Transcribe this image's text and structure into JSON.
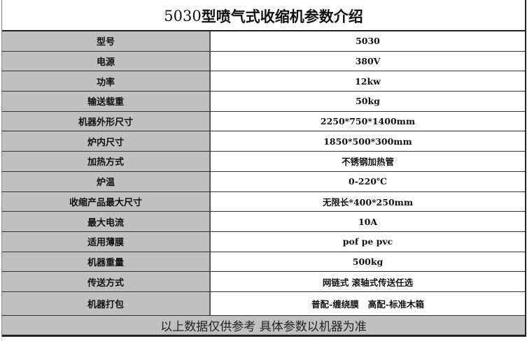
{
  "title": {
    "model": "5030",
    "text": "型喷气式收缩机参数介绍"
  },
  "rows": [
    {
      "label": "型号",
      "value": "5030"
    },
    {
      "label": "电源",
      "value": "380V"
    },
    {
      "label": "功率",
      "value": "12kw"
    },
    {
      "label": "输送载重",
      "value": "50kg"
    },
    {
      "label": "机器外形尺寸",
      "value": "2250*750*1400mm"
    },
    {
      "label": "炉内尺寸",
      "value": "1850*500*300mm"
    },
    {
      "label": "加热方式",
      "value": "不锈钢加热管"
    },
    {
      "label": "炉温",
      "value": "0-220℃"
    },
    {
      "label": "收缩产品最大尺寸",
      "value": "无限长*400*250mm"
    },
    {
      "label": "最大电流",
      "value": "10A"
    },
    {
      "label": "适用薄膜",
      "value": "pof pe pvc"
    },
    {
      "label": "机器重量",
      "value": "500kg"
    },
    {
      "label": "传送方式",
      "value": "网链式 滚轴式传送任选"
    },
    {
      "label": "机器打包",
      "value": "普配-缠绕膜   高配-标准木箱"
    }
  ],
  "footer": "以上数据仅供参考 具体参数以机器为准"
}
